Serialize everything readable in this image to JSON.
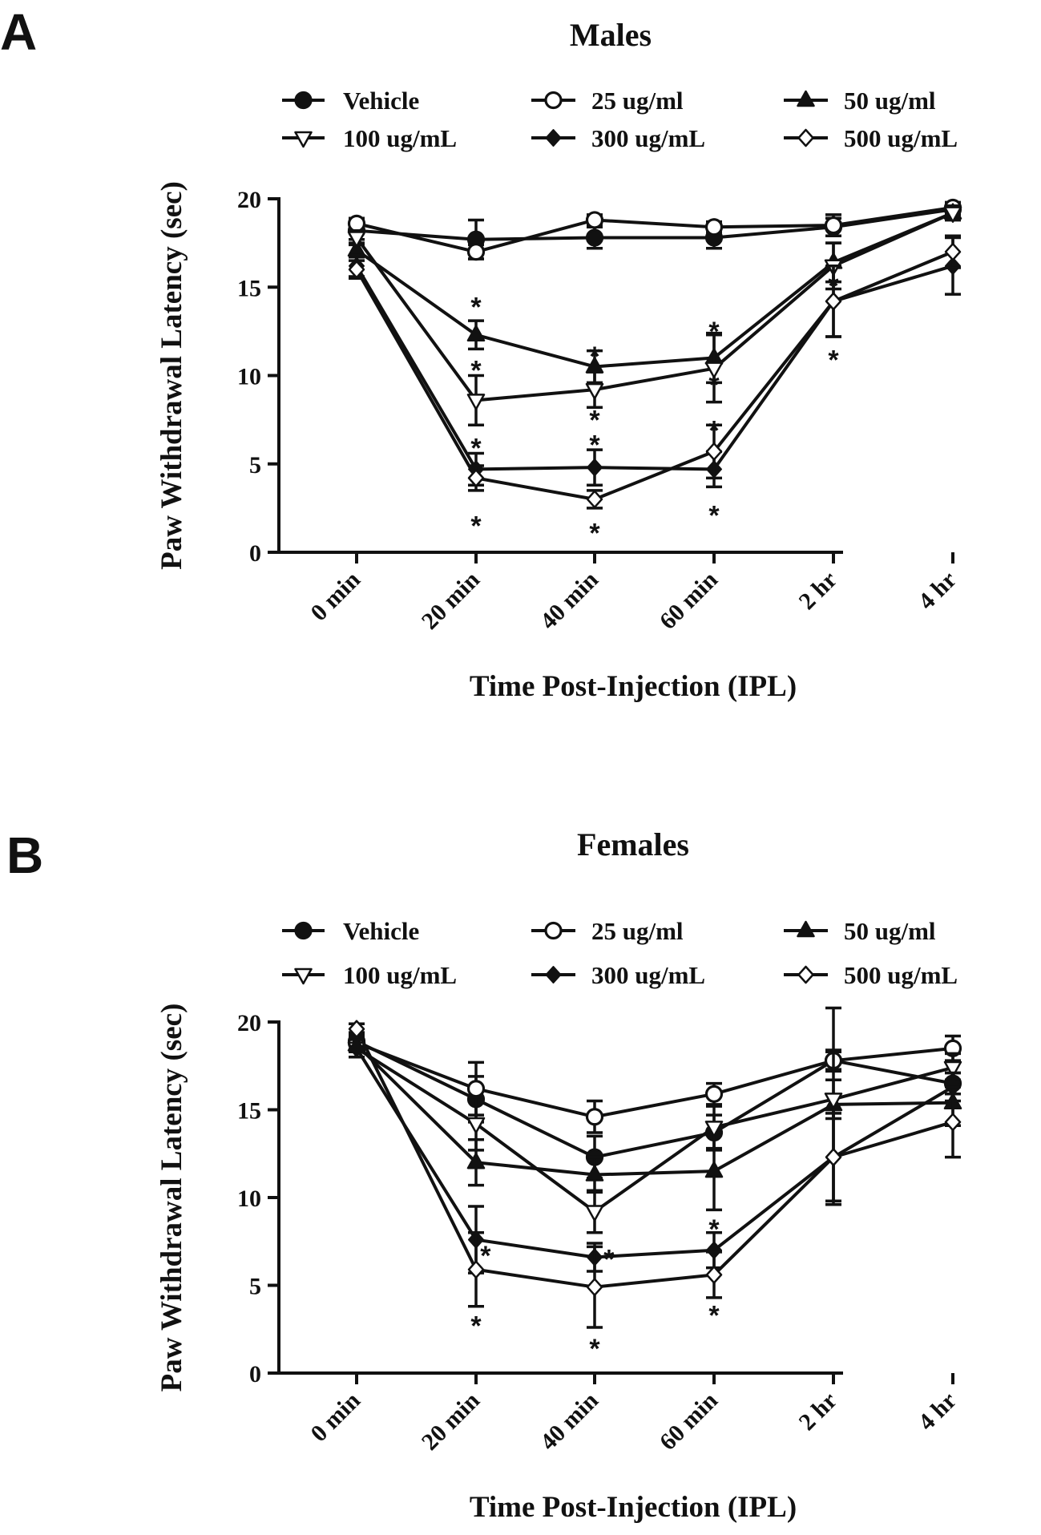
{
  "figure": {
    "panels": [
      {
        "letter": "A"
      },
      {
        "letter": "B"
      }
    ]
  },
  "chart_data": [
    {
      "type": "line",
      "title": "Males",
      "xlabel": "Time Post-Injection (IPL)",
      "ylabel": "Paw Withdrawal Latency (sec)",
      "categories": [
        "0 min",
        "20 min",
        "40 min",
        "60 min",
        "2 hr",
        "4 hr"
      ],
      "ylim": [
        0,
        20
      ],
      "yticks": [
        0,
        5,
        10,
        15,
        20
      ],
      "series": [
        {
          "name": "Vehicle",
          "marker": "circle-filled",
          "values": [
            18.2,
            17.7,
            17.8,
            17.8,
            18.4,
            19.4
          ],
          "errors": [
            0.5,
            1.1,
            0.6,
            0.6,
            0.5,
            0.3
          ]
        },
        {
          "name": "25 ug/ml",
          "marker": "circle-open",
          "values": [
            18.6,
            17.0,
            18.8,
            18.4,
            18.5,
            19.5
          ],
          "errors": [
            0.3,
            0.4,
            0.3,
            0.3,
            0.6,
            0.3
          ]
        },
        {
          "name": "50 ug/ml",
          "marker": "triangle-up-filled",
          "values": [
            17.1,
            12.3,
            10.5,
            11.0,
            16.4,
            19.2
          ],
          "errors": [
            0.4,
            0.8,
            0.9,
            1.4,
            1.1,
            0.4
          ]
        },
        {
          "name": "100 ug/mL",
          "marker": "triangle-down-open",
          "values": [
            17.8,
            8.6,
            9.2,
            10.4,
            16.2,
            19.2
          ],
          "errors": [
            0.4,
            1.4,
            1.0,
            1.9,
            1.3,
            0.4
          ]
        },
        {
          "name": "300 ug/mL",
          "marker": "diamond-filled",
          "values": [
            16.2,
            4.7,
            4.8,
            4.7,
            14.2,
            16.2
          ],
          "errors": [
            0.6,
            0.9,
            1.0,
            1.0,
            2.0,
            1.6
          ]
        },
        {
          "name": "500 ug/mL",
          "marker": "diamond-open",
          "values": [
            16.0,
            4.2,
            3.0,
            5.7,
            14.2,
            17.0
          ],
          "errors": [
            0.5,
            0.7,
            0.5,
            1.5,
            2.0,
            0.9
          ]
        }
      ],
      "annotations": [
        {
          "text": "*",
          "category": "20 min",
          "y": 14.0
        },
        {
          "text": "*",
          "category": "20 min",
          "y": 10.4
        },
        {
          "text": "*",
          "category": "20 min",
          "y": 6.0
        },
        {
          "text": "*",
          "category": "20 min",
          "y": 1.6
        },
        {
          "text": "*",
          "category": "40 min",
          "y": 11.2
        },
        {
          "text": "*",
          "category": "40 min",
          "y": 7.6
        },
        {
          "text": "*",
          "category": "40 min",
          "y": 6.2
        },
        {
          "text": "*",
          "category": "40 min",
          "y": 1.2
        },
        {
          "text": "*",
          "category": "60 min",
          "y": 12.6
        },
        {
          "text": "*",
          "category": "60 min",
          "y": 9.6
        },
        {
          "text": "*",
          "category": "60 min",
          "y": 7.0
        },
        {
          "text": "*",
          "category": "60 min",
          "y": 2.2
        },
        {
          "text": "*",
          "category": "2 hr",
          "y": 15.2
        },
        {
          "text": "*",
          "category": "2 hr",
          "y": 11.0
        }
      ]
    },
    {
      "type": "line",
      "title": "Females",
      "xlabel": "Time Post-Injection (IPL)",
      "ylabel": "Paw Withdrawal Latency (sec)",
      "categories": [
        "0 min",
        "20 min",
        "40 min",
        "60 min",
        "2 hr",
        "4 hr"
      ],
      "ylim": [
        0,
        20
      ],
      "yticks": [
        0,
        5,
        10,
        15,
        20
      ],
      "series": [
        {
          "name": "Vehicle",
          "marker": "circle-filled",
          "values": [
            18.9,
            15.6,
            12.3,
            13.7,
            17.8,
            16.5
          ],
          "errors": [
            0.5,
            1.3,
            1.2,
            1.0,
            0.5,
            0.6
          ]
        },
        {
          "name": "25 ug/ml",
          "marker": "circle-open",
          "values": [
            18.8,
            16.2,
            14.6,
            15.9,
            17.8,
            18.5
          ],
          "errors": [
            0.4,
            1.5,
            0.9,
            0.6,
            0.6,
            0.7
          ]
        },
        {
          "name": "50 ug/ml",
          "marker": "triangle-up-filled",
          "values": [
            18.7,
            12.0,
            11.3,
            11.5,
            15.3,
            15.4
          ],
          "errors": [
            0.4,
            1.3,
            1.0,
            2.2,
            5.5,
            1.3
          ]
        },
        {
          "name": "100 ug/mL",
          "marker": "triangle-down-open",
          "values": [
            18.5,
            14.2,
            9.2,
            14.0,
            15.6,
            17.4
          ],
          "errors": [
            0.5,
            1.5,
            1.2,
            1.2,
            1.1,
            0.8
          ]
        },
        {
          "name": "300 ug/mL",
          "marker": "diamond-filled",
          "values": [
            18.5,
            7.6,
            6.6,
            7.0,
            12.3,
            16.3
          ],
          "errors": [
            0.5,
            1.9,
            0.8,
            1.0,
            2.7,
            0.8
          ]
        },
        {
          "name": "500 ug/mL",
          "marker": "diamond-open",
          "values": [
            19.6,
            5.9,
            4.9,
            5.6,
            12.3,
            14.3
          ],
          "errors": [
            0.3,
            2.1,
            2.3,
            1.3,
            2.5,
            2.0
          ]
        }
      ],
      "annotations": [
        {
          "text": "*",
          "category": "20 min",
          "y": 6.8,
          "dx": 0.08
        },
        {
          "text": "*",
          "category": "20 min",
          "y": 2.8
        },
        {
          "text": "*",
          "category": "40 min",
          "y": 6.6,
          "dx": 0.12
        },
        {
          "text": "*",
          "category": "40 min",
          "y": 1.5
        },
        {
          "text": "*",
          "category": "60 min",
          "y": 8.3
        },
        {
          "text": "*",
          "category": "60 min",
          "y": 3.4
        }
      ]
    }
  ]
}
